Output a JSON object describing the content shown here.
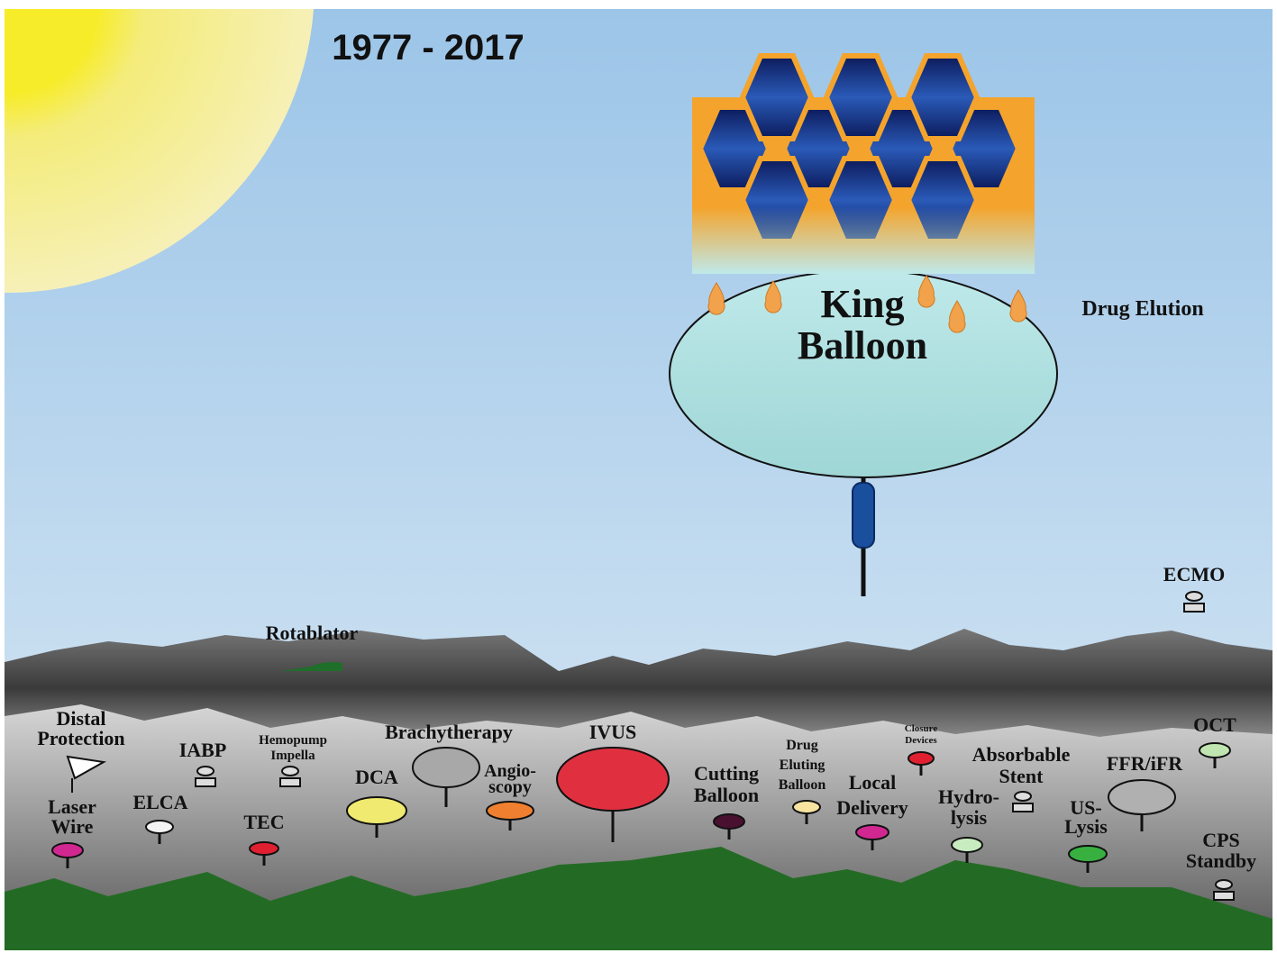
{
  "title": "1977 - 2017",
  "king_balloon": {
    "lines": [
      "King",
      "Balloon"
    ]
  },
  "drug_elution": "Drug Elution",
  "devices": [
    {
      "lines": [
        "Distal",
        "Protection"
      ]
    },
    {
      "lines": [
        "IABP"
      ]
    },
    {
      "lines": [
        "Hemopump",
        "Impella"
      ]
    },
    {
      "lines": [
        "Brachytherapy"
      ]
    },
    {
      "lines": [
        "IVUS"
      ]
    },
    {
      "lines": [
        "Drug",
        "Eluting",
        "Balloon"
      ]
    },
    {
      "lines": [
        "Closure",
        "Devices"
      ]
    },
    {
      "lines": [
        "Absorbable",
        "Stent"
      ]
    },
    {
      "lines": [
        "OCT"
      ]
    },
    {
      "lines": [
        "FFR/iFR"
      ]
    },
    {
      "lines": [
        "Laser",
        "Wire"
      ]
    },
    {
      "lines": [
        "ELCA"
      ]
    },
    {
      "lines": [
        "TEC"
      ]
    },
    {
      "lines": [
        "DCA"
      ]
    },
    {
      "lines": [
        "Angio-",
        "scopy"
      ]
    },
    {
      "lines": [
        "Cutting",
        "Balloon"
      ]
    },
    {
      "lines": [
        "Local",
        "Delivery"
      ]
    },
    {
      "lines": [
        "Hydro-",
        "lysis"
      ]
    },
    {
      "lines": [
        "US-",
        "Lysis"
      ]
    },
    {
      "lines": [
        "CPS",
        "Standby"
      ]
    },
    {
      "lines": [
        "ECMO"
      ]
    },
    {
      "lines": [
        "Rotablator"
      ]
    }
  ]
}
